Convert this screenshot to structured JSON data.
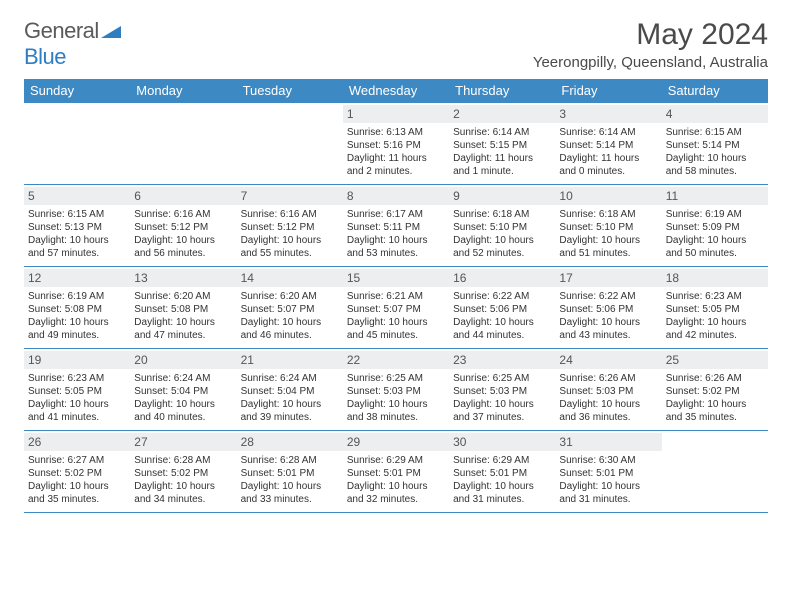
{
  "brand": {
    "text1": "General",
    "text2": "Blue",
    "accent_color": "#2f7ec2",
    "text_color": "#5a5a5a"
  },
  "title": "May 2024",
  "location": "Yeerongpilly, Queensland, Australia",
  "header_bg": "#3d89c3",
  "daynum_bg": "#eceef0",
  "week_border": "#3d89c3",
  "day_headers": [
    "Sunday",
    "Monday",
    "Tuesday",
    "Wednesday",
    "Thursday",
    "Friday",
    "Saturday"
  ],
  "weeks": [
    [
      {
        "n": "",
        "sr": "",
        "ss": "",
        "dl": ""
      },
      {
        "n": "",
        "sr": "",
        "ss": "",
        "dl": ""
      },
      {
        "n": "",
        "sr": "",
        "ss": "",
        "dl": ""
      },
      {
        "n": "1",
        "sr": "Sunrise: 6:13 AM",
        "ss": "Sunset: 5:16 PM",
        "dl": "Daylight: 11 hours and 2 minutes."
      },
      {
        "n": "2",
        "sr": "Sunrise: 6:14 AM",
        "ss": "Sunset: 5:15 PM",
        "dl": "Daylight: 11 hours and 1 minute."
      },
      {
        "n": "3",
        "sr": "Sunrise: 6:14 AM",
        "ss": "Sunset: 5:14 PM",
        "dl": "Daylight: 11 hours and 0 minutes."
      },
      {
        "n": "4",
        "sr": "Sunrise: 6:15 AM",
        "ss": "Sunset: 5:14 PM",
        "dl": "Daylight: 10 hours and 58 minutes."
      }
    ],
    [
      {
        "n": "5",
        "sr": "Sunrise: 6:15 AM",
        "ss": "Sunset: 5:13 PM",
        "dl": "Daylight: 10 hours and 57 minutes."
      },
      {
        "n": "6",
        "sr": "Sunrise: 6:16 AM",
        "ss": "Sunset: 5:12 PM",
        "dl": "Daylight: 10 hours and 56 minutes."
      },
      {
        "n": "7",
        "sr": "Sunrise: 6:16 AM",
        "ss": "Sunset: 5:12 PM",
        "dl": "Daylight: 10 hours and 55 minutes."
      },
      {
        "n": "8",
        "sr": "Sunrise: 6:17 AM",
        "ss": "Sunset: 5:11 PM",
        "dl": "Daylight: 10 hours and 53 minutes."
      },
      {
        "n": "9",
        "sr": "Sunrise: 6:18 AM",
        "ss": "Sunset: 5:10 PM",
        "dl": "Daylight: 10 hours and 52 minutes."
      },
      {
        "n": "10",
        "sr": "Sunrise: 6:18 AM",
        "ss": "Sunset: 5:10 PM",
        "dl": "Daylight: 10 hours and 51 minutes."
      },
      {
        "n": "11",
        "sr": "Sunrise: 6:19 AM",
        "ss": "Sunset: 5:09 PM",
        "dl": "Daylight: 10 hours and 50 minutes."
      }
    ],
    [
      {
        "n": "12",
        "sr": "Sunrise: 6:19 AM",
        "ss": "Sunset: 5:08 PM",
        "dl": "Daylight: 10 hours and 49 minutes."
      },
      {
        "n": "13",
        "sr": "Sunrise: 6:20 AM",
        "ss": "Sunset: 5:08 PM",
        "dl": "Daylight: 10 hours and 47 minutes."
      },
      {
        "n": "14",
        "sr": "Sunrise: 6:20 AM",
        "ss": "Sunset: 5:07 PM",
        "dl": "Daylight: 10 hours and 46 minutes."
      },
      {
        "n": "15",
        "sr": "Sunrise: 6:21 AM",
        "ss": "Sunset: 5:07 PM",
        "dl": "Daylight: 10 hours and 45 minutes."
      },
      {
        "n": "16",
        "sr": "Sunrise: 6:22 AM",
        "ss": "Sunset: 5:06 PM",
        "dl": "Daylight: 10 hours and 44 minutes."
      },
      {
        "n": "17",
        "sr": "Sunrise: 6:22 AM",
        "ss": "Sunset: 5:06 PM",
        "dl": "Daylight: 10 hours and 43 minutes."
      },
      {
        "n": "18",
        "sr": "Sunrise: 6:23 AM",
        "ss": "Sunset: 5:05 PM",
        "dl": "Daylight: 10 hours and 42 minutes."
      }
    ],
    [
      {
        "n": "19",
        "sr": "Sunrise: 6:23 AM",
        "ss": "Sunset: 5:05 PM",
        "dl": "Daylight: 10 hours and 41 minutes."
      },
      {
        "n": "20",
        "sr": "Sunrise: 6:24 AM",
        "ss": "Sunset: 5:04 PM",
        "dl": "Daylight: 10 hours and 40 minutes."
      },
      {
        "n": "21",
        "sr": "Sunrise: 6:24 AM",
        "ss": "Sunset: 5:04 PM",
        "dl": "Daylight: 10 hours and 39 minutes."
      },
      {
        "n": "22",
        "sr": "Sunrise: 6:25 AM",
        "ss": "Sunset: 5:03 PM",
        "dl": "Daylight: 10 hours and 38 minutes."
      },
      {
        "n": "23",
        "sr": "Sunrise: 6:25 AM",
        "ss": "Sunset: 5:03 PM",
        "dl": "Daylight: 10 hours and 37 minutes."
      },
      {
        "n": "24",
        "sr": "Sunrise: 6:26 AM",
        "ss": "Sunset: 5:03 PM",
        "dl": "Daylight: 10 hours and 36 minutes."
      },
      {
        "n": "25",
        "sr": "Sunrise: 6:26 AM",
        "ss": "Sunset: 5:02 PM",
        "dl": "Daylight: 10 hours and 35 minutes."
      }
    ],
    [
      {
        "n": "26",
        "sr": "Sunrise: 6:27 AM",
        "ss": "Sunset: 5:02 PM",
        "dl": "Daylight: 10 hours and 35 minutes."
      },
      {
        "n": "27",
        "sr": "Sunrise: 6:28 AM",
        "ss": "Sunset: 5:02 PM",
        "dl": "Daylight: 10 hours and 34 minutes."
      },
      {
        "n": "28",
        "sr": "Sunrise: 6:28 AM",
        "ss": "Sunset: 5:01 PM",
        "dl": "Daylight: 10 hours and 33 minutes."
      },
      {
        "n": "29",
        "sr": "Sunrise: 6:29 AM",
        "ss": "Sunset: 5:01 PM",
        "dl": "Daylight: 10 hours and 32 minutes."
      },
      {
        "n": "30",
        "sr": "Sunrise: 6:29 AM",
        "ss": "Sunset: 5:01 PM",
        "dl": "Daylight: 10 hours and 31 minutes."
      },
      {
        "n": "31",
        "sr": "Sunrise: 6:30 AM",
        "ss": "Sunset: 5:01 PM",
        "dl": "Daylight: 10 hours and 31 minutes."
      },
      {
        "n": "",
        "sr": "",
        "ss": "",
        "dl": ""
      }
    ]
  ]
}
